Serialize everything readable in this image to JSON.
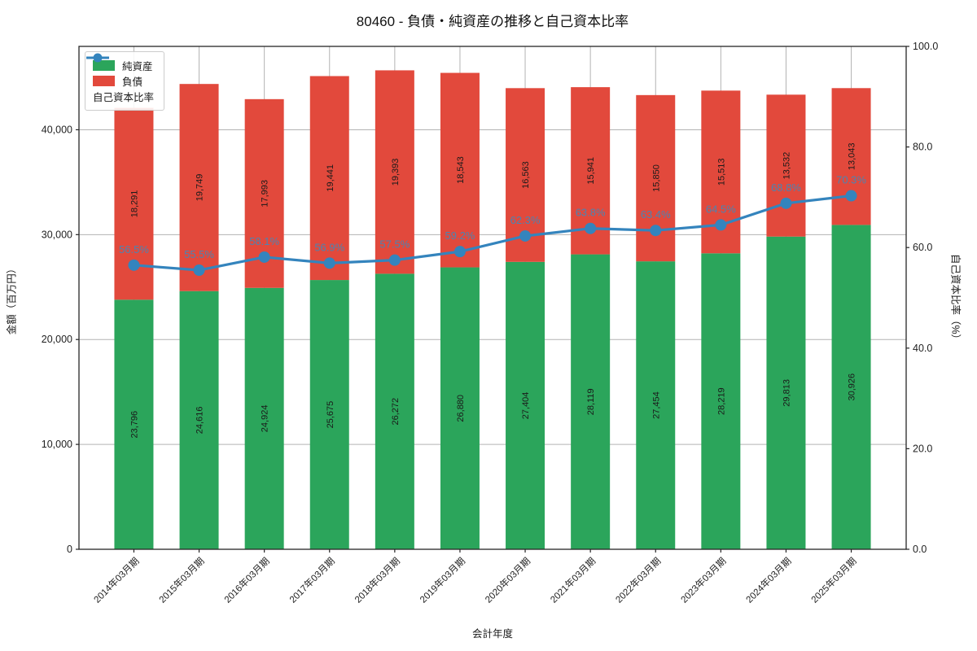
{
  "title": "80460 - 負債・純資産の推移と自己資本比率",
  "chart_data": {
    "type": "bar",
    "stacked": true,
    "categories": [
      "2014年03月期",
      "2015年03月期",
      "2016年03月期",
      "2017年03月期",
      "2018年03月期",
      "2019年03月期",
      "2020年03月期",
      "2021年03月期",
      "2022年03月期",
      "2023年03月期",
      "2024年03月期",
      "2025年03月期"
    ],
    "series": [
      {
        "name": "純資産",
        "slug": "net-assets",
        "kind": "bar",
        "color": "#2ba55b",
        "values": [
          23796,
          24616,
          24924,
          25675,
          26272,
          26880,
          27404,
          28119,
          27454,
          28219,
          29813,
          30926
        ],
        "labels": [
          "23,796",
          "24,616",
          "24,924",
          "25,675",
          "26,272",
          "26,880",
          "27,404",
          "28,119",
          "27,454",
          "28,219",
          "29,813",
          "30,926"
        ]
      },
      {
        "name": "負債",
        "slug": "liabilities",
        "kind": "bar",
        "color": "#e2493c",
        "values": [
          18291,
          19749,
          17993,
          19441,
          19393,
          18543,
          16563,
          15941,
          15850,
          15513,
          13532,
          13043
        ],
        "labels": [
          "18,291",
          "19,749",
          "17,993",
          "19,441",
          "19,393",
          "18,543",
          "16,563",
          "15,941",
          "15,850",
          "15,513",
          "13,532",
          "13,043"
        ]
      },
      {
        "name": "自己資本比率",
        "slug": "equity-ratio",
        "kind": "line",
        "axis": "right",
        "color": "#3484bd",
        "label_color": "#4b84b2",
        "values": [
          56.5,
          55.5,
          58.1,
          56.9,
          57.5,
          59.2,
          62.3,
          63.8,
          63.4,
          64.5,
          68.8,
          70.3
        ],
        "labels": [
          "56.5%",
          "55.5%",
          "58.1%",
          "56.9%",
          "57.5%",
          "59.2%",
          "62.3%",
          "63.8%",
          "63.4%",
          "64.5%",
          "68.8%",
          "70.3%"
        ]
      }
    ],
    "xlabel": "会計年度",
    "ylabel_left": "金額（百万円）",
    "ylabel_right": "自己資本比率（%）",
    "ylim_left": [
      0,
      47948
    ],
    "ylim_right": [
      0,
      100
    ],
    "yticks_left": {
      "values": [
        0,
        10000,
        20000,
        30000,
        40000
      ],
      "labels": [
        "0",
        "10,000",
        "20,000",
        "30,000",
        "40,000"
      ]
    },
    "yticks_right": {
      "values": [
        0,
        20,
        40,
        60,
        80,
        100
      ],
      "labels": [
        "0.0",
        "20.0",
        "40.0",
        "60.0",
        "80.0",
        "100.0"
      ]
    },
    "grid": true,
    "legend_position": "upper-left",
    "grid_color": "#b3b3b3",
    "spine_color": "#262626",
    "bar_label_color": "#1a1a1a"
  }
}
